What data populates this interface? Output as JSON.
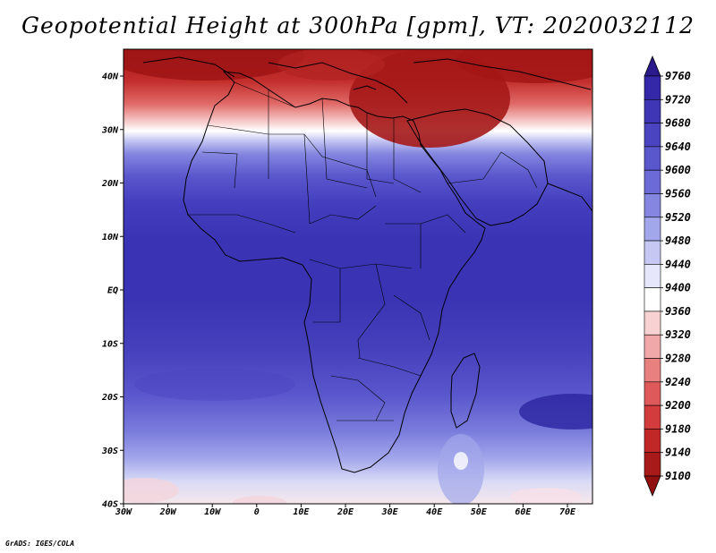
{
  "title": "Geopotential Height at 300hPa [gpm], VT: 2020032112",
  "footer": "GrADS: IGES/COLA",
  "map": {
    "lon_range": [
      -30,
      75
    ],
    "lat_range": [
      -40,
      45
    ],
    "x_ticks": [
      "30W",
      "20W",
      "10W",
      "0",
      "10E",
      "20E",
      "30E",
      "40E",
      "50E",
      "60E",
      "70E"
    ],
    "y_ticks": [
      "40N",
      "30N",
      "20N",
      "10N",
      "EQ",
      "10S",
      "20S",
      "30S",
      "40S"
    ]
  },
  "colorbar": {
    "levels": [
      "9760",
      "9720",
      "9680",
      "9640",
      "9600",
      "9560",
      "9520",
      "9480",
      "9440",
      "9400",
      "9360",
      "9320",
      "9280",
      "9240",
      "9200",
      "9180",
      "9140",
      "9100"
    ],
    "colors": [
      "#2a1a8c",
      "#3528a8",
      "#3f36b6",
      "#4a44c0",
      "#5a56cc",
      "#6c6ad6",
      "#8486e0",
      "#a2a6ea",
      "#c6c8f3",
      "#e6e7fa",
      "#ffffff",
      "#f8d2d2",
      "#f0a8a8",
      "#e88080",
      "#de5a5a",
      "#d23c3c",
      "#c02828",
      "#a81a1a",
      "#901010"
    ]
  },
  "palette": {
    "deep_red": "#b0201e",
    "red": "#d84848",
    "light_red": "#f2b4b4",
    "white": "#ffffff",
    "light_blue": "#b8baef",
    "blue": "#5c5cd0",
    "deep_blue": "#3a34b4",
    "dark_blue": "#2c24a0"
  }
}
